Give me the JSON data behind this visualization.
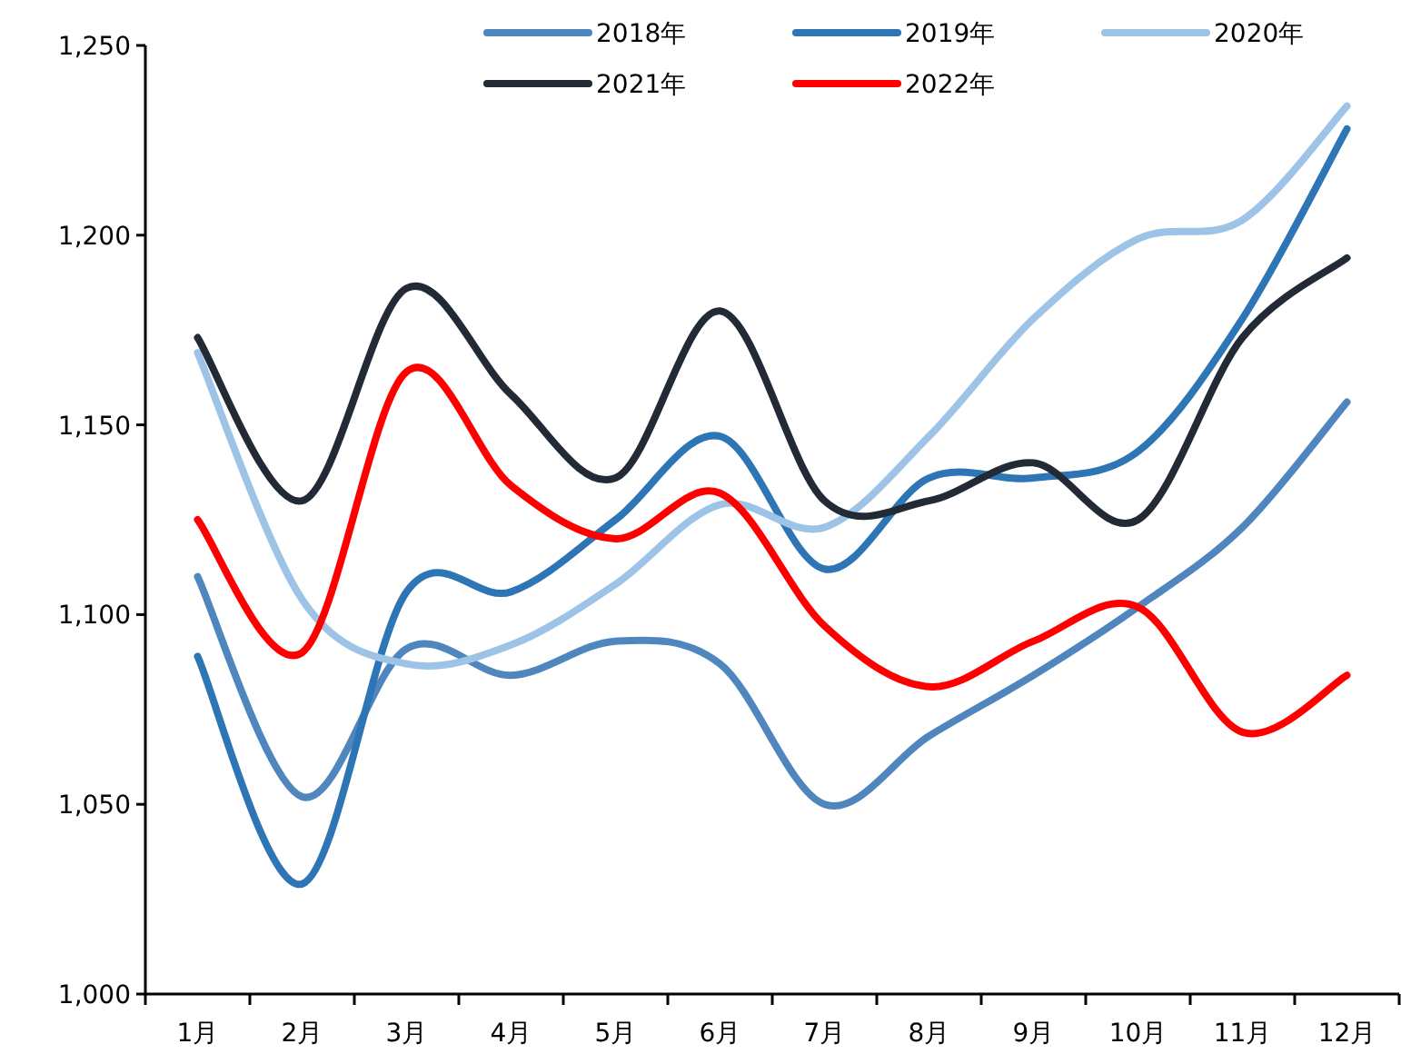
{
  "chart_data": {
    "type": "line",
    "categories": [
      "1月",
      "2月",
      "3月",
      "4月",
      "5月",
      "6月",
      "7月",
      "8月",
      "9月",
      "10月",
      "11月",
      "12月"
    ],
    "ylim": [
      1000,
      1250
    ],
    "yticks": [
      {
        "value": 1000,
        "label": "1,000"
      },
      {
        "value": 1050,
        "label": "1,050"
      },
      {
        "value": 1100,
        "label": "1,100"
      },
      {
        "value": 1150,
        "label": "1,150"
      },
      {
        "value": 1200,
        "label": "1,200"
      },
      {
        "value": 1250,
        "label": "1,250"
      }
    ],
    "grid": false,
    "legend": "top",
    "marker": "none",
    "line_style": "solid",
    "series": [
      {
        "name": "2018年",
        "color": "#4f86be",
        "values": [
          1110,
          1052,
          1091,
          1084,
          1093,
          1087,
          1050,
          1068,
          1084,
          1102,
          1123,
          1156
        ]
      },
      {
        "name": "2019年",
        "color": "#2e75b6",
        "values": [
          1089,
          1029,
          1106,
          1106,
          1125,
          1147,
          1112,
          1136,
          1136,
          1143,
          1178,
          1228
        ]
      },
      {
        "name": "2020年",
        "color": "#9dc3e6",
        "values": [
          1169,
          1104,
          1087,
          1092,
          1108,
          1129,
          1123,
          1147,
          1178,
          1199,
          1204,
          1234
        ]
      },
      {
        "name": "2021年",
        "color": "#222a35",
        "values": [
          1173,
          1130,
          1186,
          1158,
          1136,
          1180,
          1130,
          1130,
          1140,
          1125,
          1173,
          1194
        ]
      },
      {
        "name": "2022年",
        "color": "#ff0000",
        "values": [
          1125,
          1090,
          1164,
          1134,
          1120,
          1132,
          1097,
          1081,
          1093,
          1102,
          1069,
          1084
        ]
      }
    ]
  }
}
